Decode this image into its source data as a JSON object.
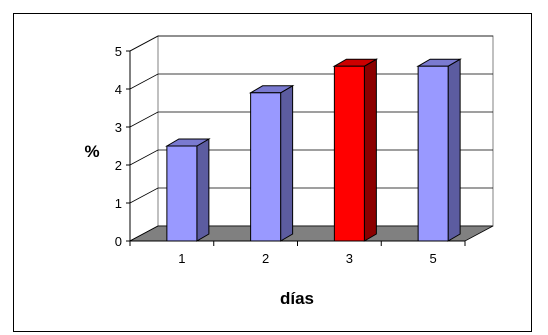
{
  "chart_data": {
    "type": "bar",
    "categories": [
      "1",
      "2",
      "3",
      "5"
    ],
    "values": [
      2.5,
      3.9,
      4.6,
      4.6
    ],
    "ylabel": "%",
    "xlabel": "días",
    "ylim": [
      0,
      5
    ],
    "yticks": [
      "0",
      "1",
      "2",
      "3",
      "4",
      "5"
    ],
    "grid": true,
    "style": "3d-column",
    "colors": {
      "bar_front": "#9999ff",
      "bar_side": "#5c5ca0",
      "bar_top": "#7a7ad0",
      "highlight_front": "#ff0000",
      "highlight_side": "#8b0000",
      "highlight_top": "#cc0000",
      "floor": "#808080"
    },
    "highlight_index": 2
  }
}
